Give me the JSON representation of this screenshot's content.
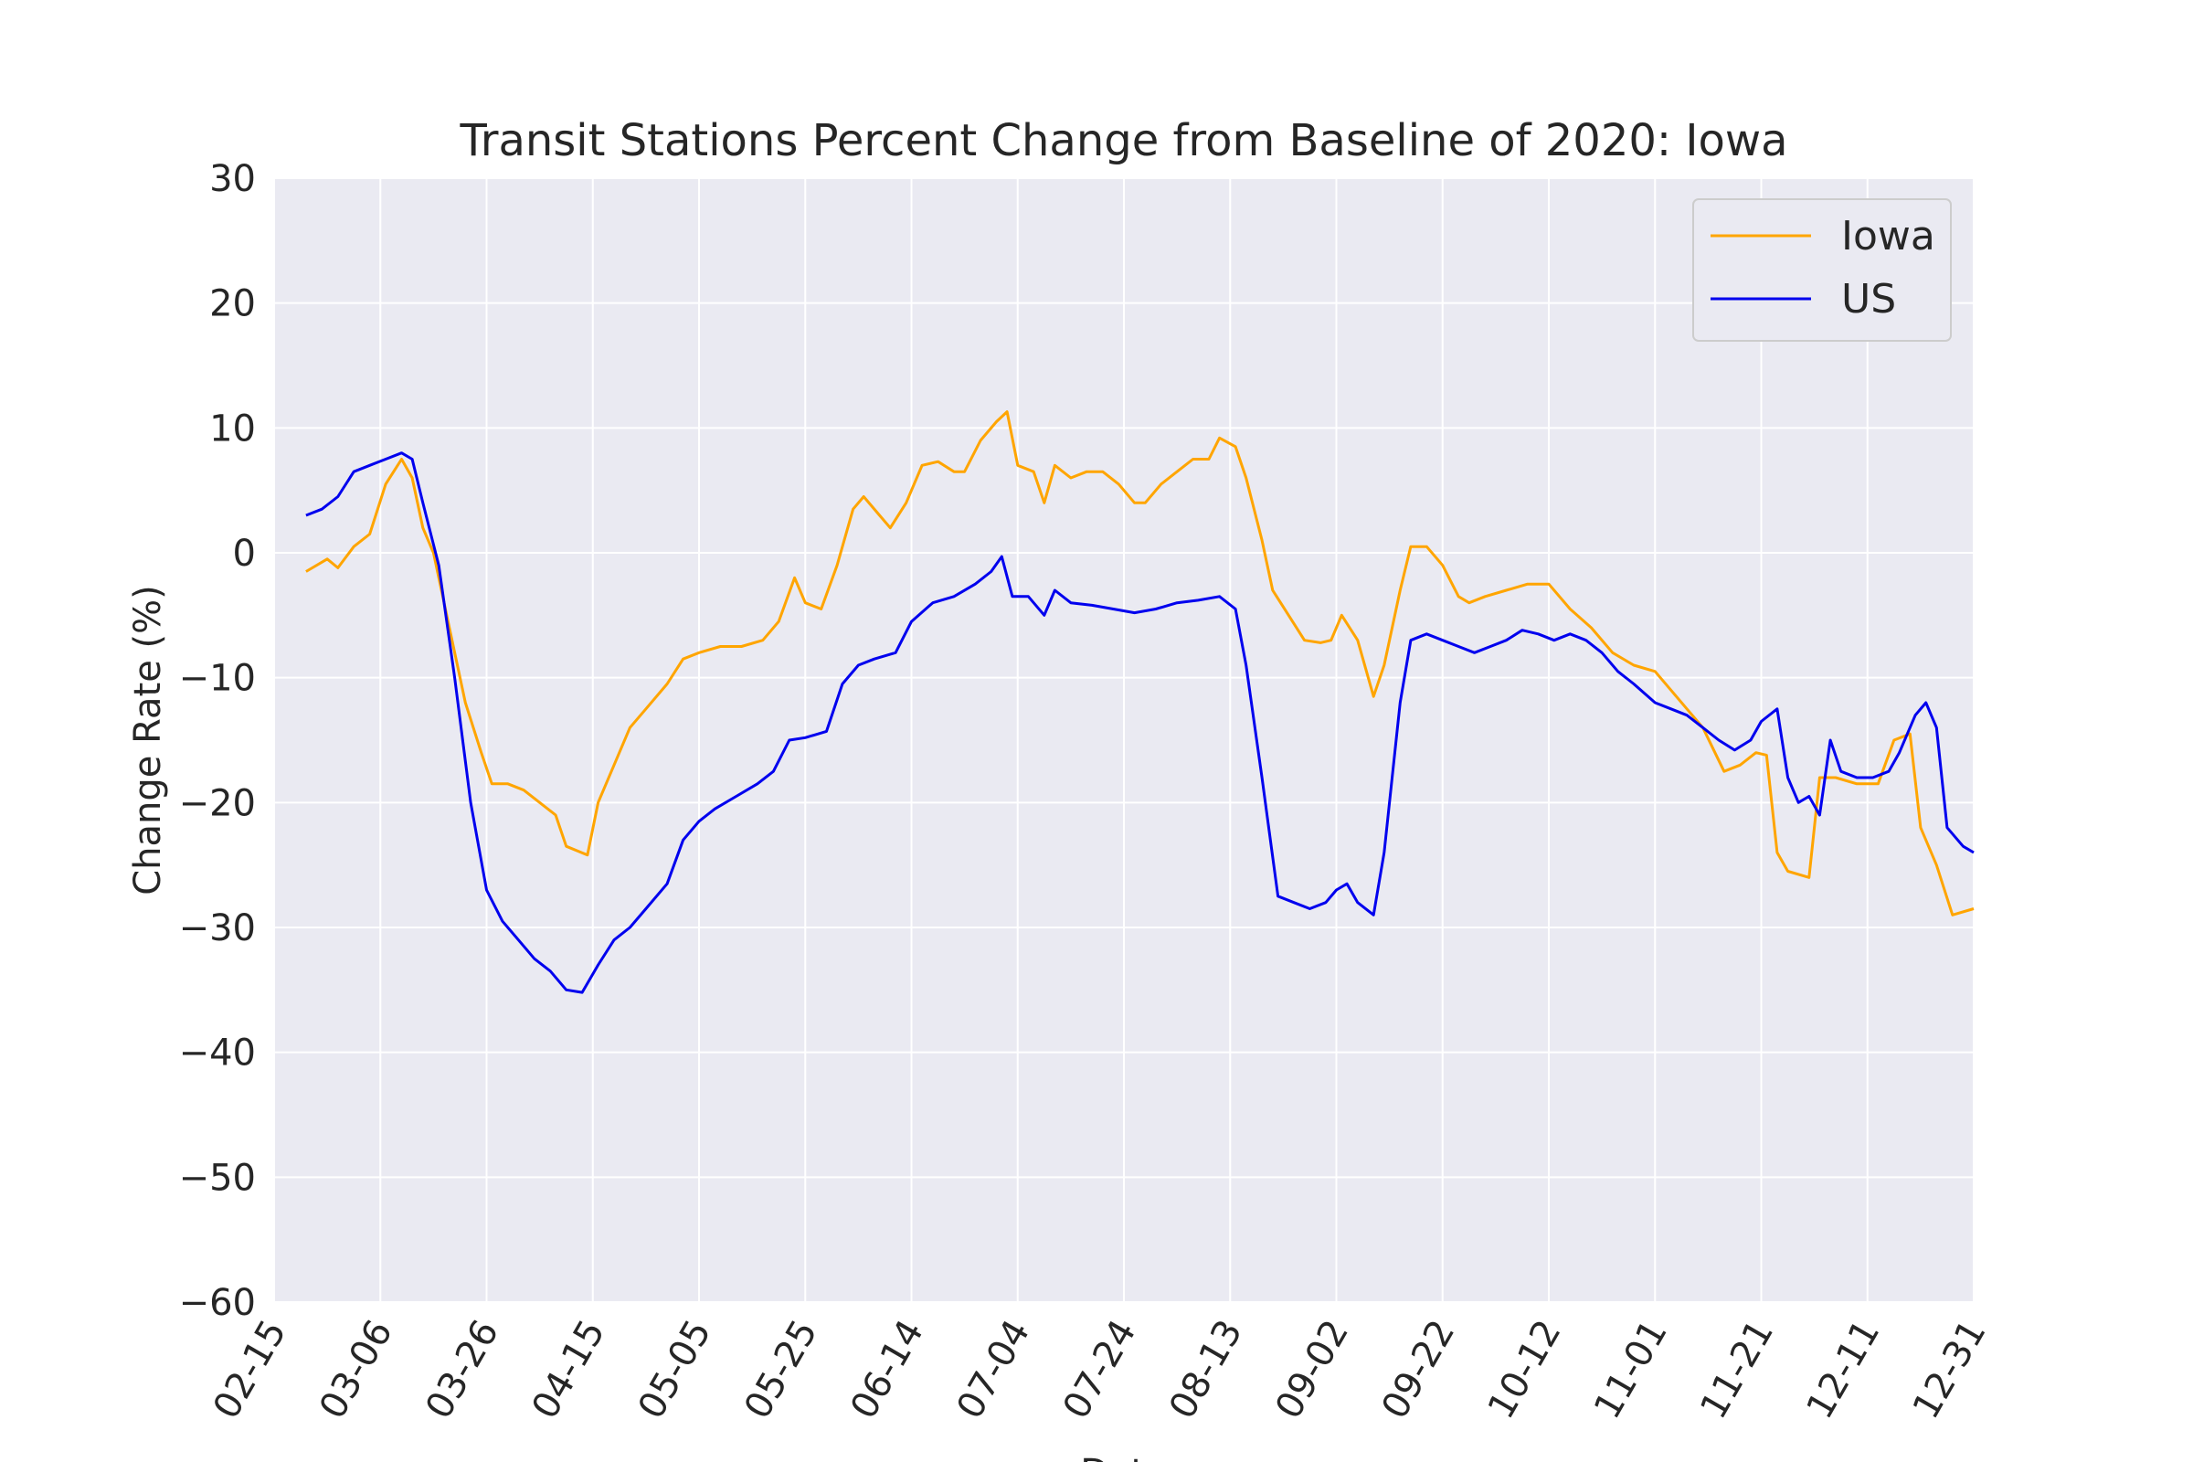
{
  "chart_data": {
    "type": "line",
    "title": "Transit Stations Percent Change from Baseline of 2020: Iowa",
    "xlabel": "Date",
    "ylabel": "Change Rate (%)",
    "ylim": [
      -60,
      30
    ],
    "yticks": [
      "30",
      "20",
      "10",
      "0",
      "−10",
      "−20",
      "−30",
      "−40",
      "−50",
      "−60"
    ],
    "xlim": [
      "02-15",
      "12-31"
    ],
    "xtick_labels": [
      "02-15",
      "03-06",
      "03-26",
      "04-15",
      "05-05",
      "05-25",
      "06-14",
      "07-04",
      "07-24",
      "08-13",
      "09-02",
      "09-22",
      "10-12",
      "11-01",
      "11-21",
      "12-11",
      "12-31"
    ],
    "grid": true,
    "legend_position": "top-right",
    "background_color": "#eaeaf2",
    "series": [
      {
        "name": "Iowa",
        "color": "#ffa500",
        "style": "7-day rolling average",
        "points": [
          [
            "02-21",
            -1.5
          ],
          [
            "02-25",
            -0.5
          ],
          [
            "02-27",
            -1.2
          ],
          [
            "03-01",
            0.5
          ],
          [
            "03-04",
            1.5
          ],
          [
            "03-07",
            5.5
          ],
          [
            "03-10",
            7.5
          ],
          [
            "03-12",
            6.0
          ],
          [
            "03-14",
            2.0
          ],
          [
            "03-16",
            0.0
          ],
          [
            "03-19",
            -6.0
          ],
          [
            "03-22",
            -12.0
          ],
          [
            "03-25",
            -16.0
          ],
          [
            "03-27",
            -18.5
          ],
          [
            "03-30",
            -18.5
          ],
          [
            "04-02",
            -19.0
          ],
          [
            "04-05",
            -20.0
          ],
          [
            "04-08",
            -21.0
          ],
          [
            "04-10",
            -23.5
          ],
          [
            "04-14",
            -24.2
          ],
          [
            "04-16",
            -20.0
          ],
          [
            "04-19",
            -17.0
          ],
          [
            "04-22",
            -14.0
          ],
          [
            "04-25",
            -12.5
          ],
          [
            "04-29",
            -10.5
          ],
          [
            "05-02",
            -8.5
          ],
          [
            "05-05",
            -8.0
          ],
          [
            "05-09",
            -7.5
          ],
          [
            "05-13",
            -7.5
          ],
          [
            "05-17",
            -7.0
          ],
          [
            "05-20",
            -5.5
          ],
          [
            "05-23",
            -2.0
          ],
          [
            "05-25",
            -4.0
          ],
          [
            "05-28",
            -4.5
          ],
          [
            "05-31",
            -1.0
          ],
          [
            "06-03",
            3.5
          ],
          [
            "06-05",
            4.5
          ],
          [
            "06-08",
            3.0
          ],
          [
            "06-10",
            2.0
          ],
          [
            "06-13",
            4.0
          ],
          [
            "06-16",
            7.0
          ],
          [
            "06-19",
            7.3
          ],
          [
            "06-22",
            6.5
          ],
          [
            "06-24",
            6.5
          ],
          [
            "06-27",
            9.0
          ],
          [
            "06-30",
            10.5
          ],
          [
            "07-02",
            11.3
          ],
          [
            "07-04",
            7.0
          ],
          [
            "07-07",
            6.5
          ],
          [
            "07-09",
            4.0
          ],
          [
            "07-11",
            7.0
          ],
          [
            "07-14",
            6.0
          ],
          [
            "07-17",
            6.5
          ],
          [
            "07-20",
            6.5
          ],
          [
            "07-23",
            5.5
          ],
          [
            "07-26",
            4.0
          ],
          [
            "07-28",
            4.0
          ],
          [
            "07-31",
            5.5
          ],
          [
            "08-03",
            6.5
          ],
          [
            "08-06",
            7.5
          ],
          [
            "08-09",
            7.5
          ],
          [
            "08-11",
            9.2
          ],
          [
            "08-14",
            8.5
          ],
          [
            "08-16",
            6.0
          ],
          [
            "08-19",
            1.0
          ],
          [
            "08-21",
            -3.0
          ],
          [
            "08-24",
            -5.0
          ],
          [
            "08-27",
            -7.0
          ],
          [
            "08-30",
            -7.2
          ],
          [
            "09-01",
            -7.0
          ],
          [
            "09-03",
            -5.0
          ],
          [
            "09-06",
            -7.0
          ],
          [
            "09-09",
            -11.5
          ],
          [
            "09-11",
            -9.0
          ],
          [
            "09-14",
            -3.0
          ],
          [
            "09-16",
            0.5
          ],
          [
            "09-19",
            0.5
          ],
          [
            "09-22",
            -1.0
          ],
          [
            "09-25",
            -3.5
          ],
          [
            "09-27",
            -4.0
          ],
          [
            "09-30",
            -3.5
          ],
          [
            "10-04",
            -3.0
          ],
          [
            "10-08",
            -2.5
          ],
          [
            "10-12",
            -2.5
          ],
          [
            "10-16",
            -4.5
          ],
          [
            "10-20",
            -6.0
          ],
          [
            "10-24",
            -8.0
          ],
          [
            "10-28",
            -9.0
          ],
          [
            "11-01",
            -9.5
          ],
          [
            "11-04",
            -11.0
          ],
          [
            "11-07",
            -12.5
          ],
          [
            "11-10",
            -14.0
          ],
          [
            "11-14",
            -17.5
          ],
          [
            "11-17",
            -17.0
          ],
          [
            "11-20",
            -16.0
          ],
          [
            "11-22",
            -16.2
          ],
          [
            "11-24",
            -24.0
          ],
          [
            "11-26",
            -25.5
          ],
          [
            "11-30",
            -26.0
          ],
          [
            "12-02",
            -18.0
          ],
          [
            "12-05",
            -18.0
          ],
          [
            "12-09",
            -18.5
          ],
          [
            "12-13",
            -18.5
          ],
          [
            "12-16",
            -15.0
          ],
          [
            "12-19",
            -14.5
          ],
          [
            "12-21",
            -22.0
          ],
          [
            "12-24",
            -25.0
          ],
          [
            "12-27",
            -29.0
          ],
          [
            "12-31",
            -28.5
          ]
        ]
      },
      {
        "name": "US",
        "color": "#0000ee",
        "style": "7-day rolling average",
        "points": [
          [
            "02-21",
            3.0
          ],
          [
            "02-24",
            3.5
          ],
          [
            "02-27",
            4.5
          ],
          [
            "03-01",
            6.5
          ],
          [
            "03-04",
            7.0
          ],
          [
            "03-07",
            7.5
          ],
          [
            "03-10",
            8.0
          ],
          [
            "03-12",
            7.5
          ],
          [
            "03-14",
            4.0
          ],
          [
            "03-17",
            -1.0
          ],
          [
            "03-20",
            -10.0
          ],
          [
            "03-23",
            -20.0
          ],
          [
            "03-26",
            -27.0
          ],
          [
            "03-29",
            -29.5
          ],
          [
            "04-01",
            -31.0
          ],
          [
            "04-04",
            -32.5
          ],
          [
            "04-07",
            -33.5
          ],
          [
            "04-10",
            -35.0
          ],
          [
            "04-13",
            -35.2
          ],
          [
            "04-16",
            -33.0
          ],
          [
            "04-19",
            -31.0
          ],
          [
            "04-22",
            -30.0
          ],
          [
            "04-25",
            -28.5
          ],
          [
            "04-29",
            -26.5
          ],
          [
            "05-02",
            -23.0
          ],
          [
            "05-05",
            -21.5
          ],
          [
            "05-08",
            -20.5
          ],
          [
            "05-12",
            -19.5
          ],
          [
            "05-16",
            -18.5
          ],
          [
            "05-19",
            -17.5
          ],
          [
            "05-22",
            -15.0
          ],
          [
            "05-25",
            -14.8
          ],
          [
            "05-29",
            -14.3
          ],
          [
            "06-01",
            -10.5
          ],
          [
            "06-04",
            -9.0
          ],
          [
            "06-07",
            -8.5
          ],
          [
            "06-11",
            -8.0
          ],
          [
            "06-14",
            -5.5
          ],
          [
            "06-18",
            -4.0
          ],
          [
            "06-22",
            -3.5
          ],
          [
            "06-26",
            -2.5
          ],
          [
            "06-29",
            -1.5
          ],
          [
            "07-01",
            -0.3
          ],
          [
            "07-03",
            -3.5
          ],
          [
            "07-06",
            -3.5
          ],
          [
            "07-09",
            -5.0
          ],
          [
            "07-11",
            -3.0
          ],
          [
            "07-14",
            -4.0
          ],
          [
            "07-18",
            -4.2
          ],
          [
            "07-22",
            -4.5
          ],
          [
            "07-26",
            -4.8
          ],
          [
            "07-30",
            -4.5
          ],
          [
            "08-03",
            -4.0
          ],
          [
            "08-07",
            -3.8
          ],
          [
            "08-11",
            -3.5
          ],
          [
            "08-14",
            -4.5
          ],
          [
            "08-16",
            -9.0
          ],
          [
            "08-19",
            -18.0
          ],
          [
            "08-22",
            -27.5
          ],
          [
            "08-25",
            -28.0
          ],
          [
            "08-28",
            -28.5
          ],
          [
            "08-31",
            -28.0
          ],
          [
            "09-02",
            -27.0
          ],
          [
            "09-04",
            -26.5
          ],
          [
            "09-06",
            -28.0
          ],
          [
            "09-09",
            -29.0
          ],
          [
            "09-11",
            -24.0
          ],
          [
            "09-14",
            -12.0
          ],
          [
            "09-16",
            -7.0
          ],
          [
            "09-19",
            -6.5
          ],
          [
            "09-22",
            -7.0
          ],
          [
            "09-25",
            -7.5
          ],
          [
            "09-28",
            -8.0
          ],
          [
            "10-01",
            -7.5
          ],
          [
            "10-04",
            -7.0
          ],
          [
            "10-07",
            -6.2
          ],
          [
            "10-10",
            -6.5
          ],
          [
            "10-13",
            -7.0
          ],
          [
            "10-16",
            -6.5
          ],
          [
            "10-19",
            -7.0
          ],
          [
            "10-22",
            -8.0
          ],
          [
            "10-25",
            -9.5
          ],
          [
            "10-28",
            -10.5
          ],
          [
            "11-01",
            -12.0
          ],
          [
            "11-04",
            -12.5
          ],
          [
            "11-07",
            -13.0
          ],
          [
            "11-10",
            -14.0
          ],
          [
            "11-13",
            -15.0
          ],
          [
            "11-16",
            -15.8
          ],
          [
            "11-19",
            -15.0
          ],
          [
            "11-21",
            -13.5
          ],
          [
            "11-24",
            -12.5
          ],
          [
            "11-26",
            -18.0
          ],
          [
            "11-28",
            -20.0
          ],
          [
            "11-30",
            -19.5
          ],
          [
            "12-02",
            -21.0
          ],
          [
            "12-04",
            -15.0
          ],
          [
            "12-06",
            -17.5
          ],
          [
            "12-09",
            -18.0
          ],
          [
            "12-12",
            -18.0
          ],
          [
            "12-15",
            -17.5
          ],
          [
            "12-17",
            -16.0
          ],
          [
            "12-20",
            -13.0
          ],
          [
            "12-22",
            -12.0
          ],
          [
            "12-24",
            -14.0
          ],
          [
            "12-26",
            -22.0
          ],
          [
            "12-29",
            -23.5
          ],
          [
            "12-31",
            -24.0
          ]
        ]
      }
    ]
  }
}
